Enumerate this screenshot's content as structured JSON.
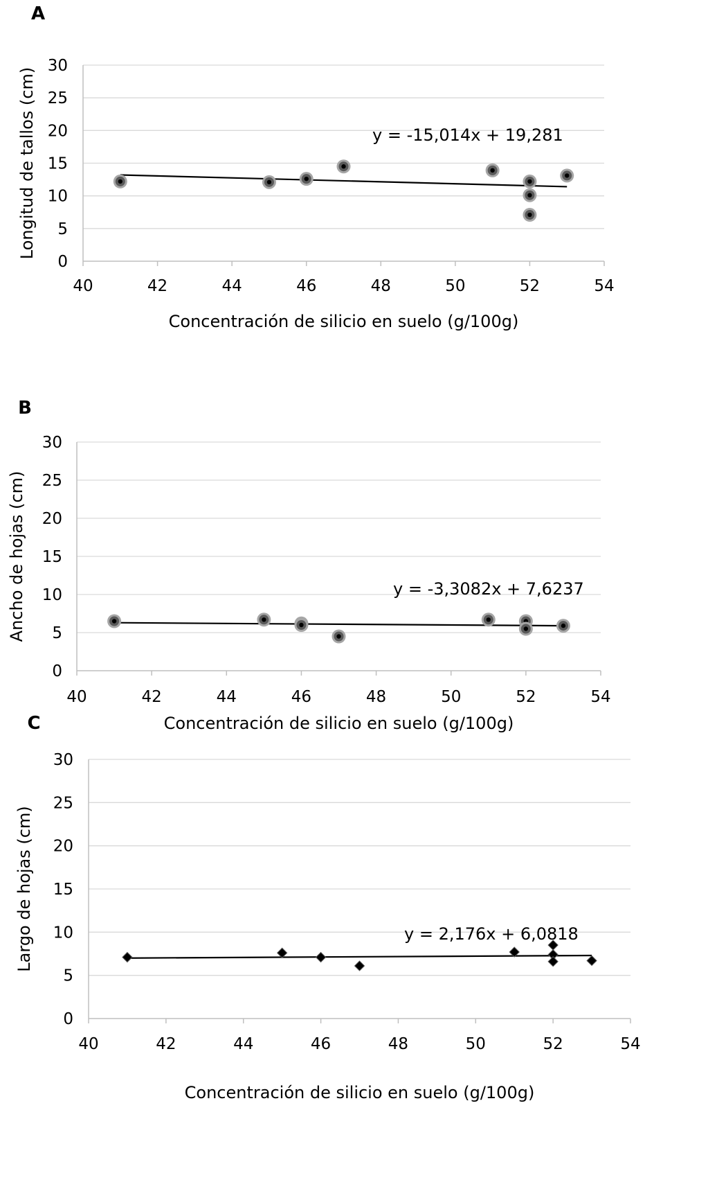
{
  "chart_data": [
    {
      "panel": "A",
      "type": "scatter",
      "marker": "circle",
      "xlabel": "Concentración de silicio en suelo (g/100g)",
      "ylabel": "Longitud de tallos (cm)",
      "xlim": [
        40,
        54
      ],
      "ylim": [
        0,
        30
      ],
      "x_ticks": [
        "40",
        "42",
        "44",
        "46",
        "48",
        "50",
        "52",
        "54"
      ],
      "y_ticks": [
        "0",
        "5",
        "10",
        "15",
        "20",
        "25",
        "30"
      ],
      "grid": "horizontal",
      "points": [
        {
          "x": 41,
          "y": 12.2
        },
        {
          "x": 45,
          "y": 12.1
        },
        {
          "x": 46,
          "y": 12.6
        },
        {
          "x": 47,
          "y": 14.5
        },
        {
          "x": 51,
          "y": 13.9
        },
        {
          "x": 52,
          "y": 12.2
        },
        {
          "x": 52,
          "y": 10.1
        },
        {
          "x": 52,
          "y": 7.1
        },
        {
          "x": 53,
          "y": 13.1
        }
      ],
      "trendline": {
        "x": [
          41,
          53
        ],
        "y": [
          13.2,
          11.4
        ]
      },
      "equation": "y = -15,014x + 19,281"
    },
    {
      "panel": "B",
      "type": "scatter",
      "marker": "circle",
      "xlabel": "Concentración de silicio en suelo (g/100g)",
      "ylabel": "Ancho de hojas  (cm)",
      "xlim": [
        40,
        54
      ],
      "ylim": [
        0,
        30
      ],
      "x_ticks": [
        "40",
        "42",
        "44",
        "46",
        "48",
        "50",
        "52",
        "54"
      ],
      "y_ticks": [
        "0",
        "5",
        "10",
        "15",
        "20",
        "25",
        "30"
      ],
      "grid": "horizontal",
      "points": [
        {
          "x": 41,
          "y": 6.5
        },
        {
          "x": 45,
          "y": 6.7
        },
        {
          "x": 46,
          "y": 6.2
        },
        {
          "x": 46,
          "y": 6.0
        },
        {
          "x": 47,
          "y": 4.5
        },
        {
          "x": 51,
          "y": 6.7
        },
        {
          "x": 52,
          "y": 6.5
        },
        {
          "x": 52,
          "y": 5.5
        },
        {
          "x": 53,
          "y": 5.9
        }
      ],
      "trendline": {
        "x": [
          41,
          53
        ],
        "y": [
          6.3,
          5.9
        ]
      },
      "equation": "y = -3,3082x + 7,6237"
    },
    {
      "panel": "C",
      "type": "scatter",
      "marker": "diamond",
      "xlabel": "Concentración de silicio en suelo (g/100g)",
      "ylabel": "Largo de hojas  (cm)",
      "xlim": [
        40,
        54
      ],
      "ylim": [
        0,
        30
      ],
      "x_ticks": [
        "40",
        "42",
        "44",
        "46",
        "48",
        "50",
        "52",
        "54"
      ],
      "y_ticks": [
        "0",
        "5",
        "10",
        "15",
        "20",
        "25",
        "30"
      ],
      "grid": "horizontal",
      "points": [
        {
          "x": 41,
          "y": 7.1
        },
        {
          "x": 45,
          "y": 7.6
        },
        {
          "x": 46,
          "y": 7.1
        },
        {
          "x": 47,
          "y": 6.1
        },
        {
          "x": 51,
          "y": 7.7
        },
        {
          "x": 52,
          "y": 8.5
        },
        {
          "x": 52,
          "y": 7.4
        },
        {
          "x": 52,
          "y": 6.6
        },
        {
          "x": 53,
          "y": 6.7
        }
      ],
      "trendline": {
        "x": [
          41,
          53
        ],
        "y": [
          7.0,
          7.3
        ]
      },
      "equation": "y = 2,176x + 6,0818"
    }
  ]
}
